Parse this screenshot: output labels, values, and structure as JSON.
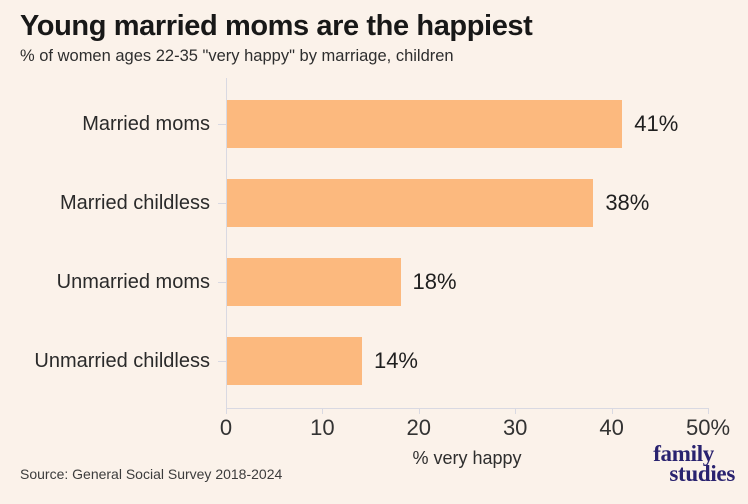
{
  "title": "Young married moms are the happiest",
  "subtitle": "% of women ages 22-35 \"very happy\" by marriage, children",
  "source": "Source: General Social Survey 2018-2024",
  "logo": {
    "line1": "family",
    "line2": "studies"
  },
  "colors": {
    "background": "#fbf2ea",
    "bar": "#fcb97e",
    "axis_line": "#d9d9e2",
    "logo_text": "#29226f"
  },
  "chart_data": {
    "type": "bar",
    "orientation": "horizontal",
    "title": "Young married moms are the happiest",
    "subtitle": "% of women ages 22-35 \"very happy\" by marriage, children",
    "categories": [
      "Married moms",
      "Married childless",
      "Unmarried moms",
      "Unmarried childless"
    ],
    "values": [
      41,
      38,
      18,
      14
    ],
    "value_labels": [
      "41%",
      "38%",
      "18%",
      "14%"
    ],
    "xlabel": "% very happy",
    "ylabel": "",
    "xlim": [
      0,
      50
    ],
    "xticks": [
      0,
      10,
      20,
      30,
      40,
      50
    ],
    "xtick_labels": [
      "0",
      "10",
      "20",
      "30",
      "40",
      "50%"
    ],
    "grid": false,
    "legend": false
  }
}
